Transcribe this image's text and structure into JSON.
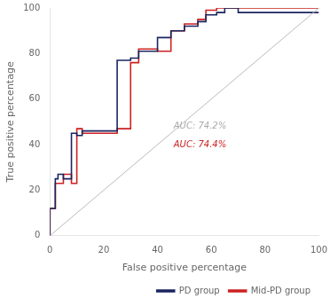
{
  "chart_data": {
    "type": "line",
    "xlabel": "False positive percentage",
    "ylabel": "True positive percentage",
    "xlim": [
      0,
      100
    ],
    "ylim": [
      0,
      100
    ],
    "xticks": [
      0,
      20,
      40,
      60,
      80,
      100
    ],
    "yticks": [
      0,
      20,
      40,
      60,
      80,
      100
    ],
    "grid": false,
    "legend": "lower right",
    "series": [
      {
        "color": "#bbbbbb",
        "x": [
          0,
          100
        ],
        "values": [
          0,
          100
        ]
      },
      {
        "name": "PD group",
        "color": "#1a2560",
        "x": [
          0,
          0,
          2,
          2,
          3,
          3,
          5,
          5,
          8,
          8,
          10,
          10,
          12,
          12,
          25,
          25,
          30,
          30,
          33,
          33,
          40,
          40,
          45,
          45,
          50,
          50,
          55,
          55,
          58,
          58,
          62,
          62,
          65,
          65,
          70,
          70,
          100
        ],
        "values": [
          0,
          12,
          12,
          25,
          25,
          27,
          27,
          25,
          25,
          45,
          45,
          44,
          44,
          46,
          46,
          77,
          77,
          78,
          78,
          81,
          81,
          87,
          87,
          90,
          90,
          92,
          92,
          94,
          94,
          97,
          97,
          98,
          98,
          100,
          100,
          98,
          98
        ]
      },
      {
        "name": "Mid-PD group",
        "color": "#cc2222",
        "x": [
          0,
          0,
          2,
          2,
          5,
          5,
          8,
          8,
          10,
          10,
          12,
          12,
          25,
          25,
          30,
          30,
          33,
          33,
          40,
          40,
          45,
          45,
          50,
          50,
          55,
          55,
          58,
          58,
          62,
          62,
          65,
          65,
          100
        ],
        "values": [
          0,
          12,
          12,
          23,
          23,
          27,
          27,
          23,
          23,
          47,
          47,
          45,
          45,
          47,
          47,
          76,
          76,
          82,
          82,
          81,
          81,
          90,
          90,
          93,
          93,
          95,
          95,
          99,
          99,
          100,
          100,
          100,
          100
        ]
      }
    ],
    "annotations": [
      {
        "text": "AUC: 74.2%",
        "x": 46,
        "y": 48,
        "color": "#aaaaaa"
      },
      {
        "text": "AUC: 74.4%",
        "x": 46,
        "y": 40,
        "color": "#cc2222"
      }
    ]
  }
}
